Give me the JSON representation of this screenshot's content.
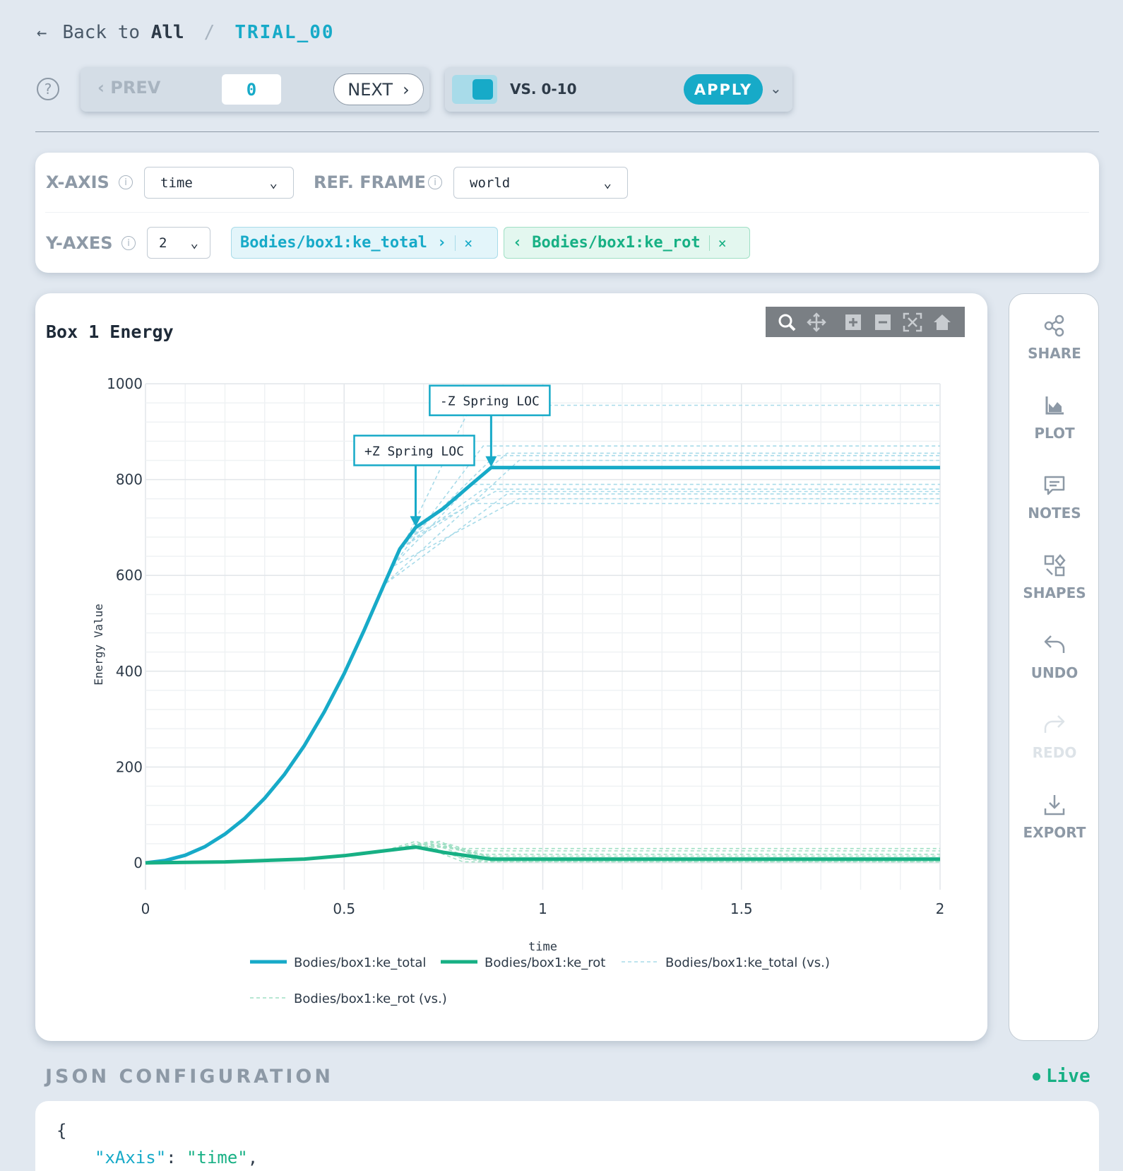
{
  "breadcrumb": {
    "back_prefix": "Back to",
    "back_target": "All",
    "separator": "/",
    "current": "TRIAL_00"
  },
  "nav": {
    "prev_label": "PREV",
    "index_value": "0",
    "next_label": "NEXT"
  },
  "compare": {
    "label": "VS. 0-10",
    "apply_label": "APPLY",
    "toggle_on": true
  },
  "axes": {
    "x_label": "X-AXIS",
    "x_value": "time",
    "ref_label": "REF. FRAME",
    "ref_value": "world",
    "y_label": "Y-AXES",
    "y_count": "2",
    "y_chips": [
      "Bodies/box1:ke_total",
      "Bodies/box1:ke_rot"
    ]
  },
  "plot": {
    "title": "Box 1 Energy"
  },
  "colors": {
    "accent": "#17aac8",
    "green": "#17b084",
    "text": "#1e2a38",
    "muted": "#8d99a6"
  },
  "chart_data": {
    "type": "line",
    "title": "Box 1 Energy",
    "xlabel": "time",
    "ylabel": "Energy Value",
    "xlim": [
      0,
      2
    ],
    "ylim": [
      0,
      1000
    ],
    "x_ticks": [
      "0",
      "0.5",
      "1",
      "1.5",
      "2"
    ],
    "y_ticks": [
      "0",
      "200",
      "400",
      "600",
      "800",
      "1000"
    ],
    "grid": true,
    "legend_position": "bottom",
    "series": [
      {
        "name": "Bodies/box1:ke_total",
        "style": "solid",
        "color": "#17aac8",
        "x": [
          0,
          0.05,
          0.1,
          0.15,
          0.2,
          0.25,
          0.3,
          0.35,
          0.4,
          0.45,
          0.5,
          0.55,
          0.6,
          0.64,
          0.68,
          0.75,
          0.82,
          0.87,
          1.0,
          1.5,
          2.0
        ],
        "y": [
          0,
          5,
          16,
          34,
          60,
          93,
          135,
          185,
          245,
          315,
          395,
          485,
          580,
          655,
          700,
          740,
          790,
          825,
          825,
          825,
          825
        ]
      },
      {
        "name": "Bodies/box1:ke_rot",
        "style": "solid",
        "color": "#17b084",
        "x": [
          0,
          0.2,
          0.4,
          0.5,
          0.6,
          0.68,
          0.75,
          0.87,
          1.0,
          1.5,
          2.0
        ],
        "y": [
          0,
          2,
          8,
          15,
          25,
          33,
          22,
          8,
          8,
          8,
          8
        ]
      },
      {
        "name": "Bodies/box1:ke_total (vs.)",
        "style": "dashed",
        "color": "#a8dbe9"
      },
      {
        "name": "Bodies/box1:ke_rot (vs.)",
        "style": "dashed",
        "color": "#9fdfc4"
      }
    ],
    "vs_total_plateaus": [
      955,
      870,
      850,
      855,
      840,
      790,
      780,
      775,
      770,
      760,
      750
    ],
    "vs_rot_plateaus": [
      30,
      25,
      18,
      14,
      10,
      8,
      6,
      5,
      4,
      3,
      2
    ],
    "annotations": [
      {
        "text": "+Z Spring LOC",
        "x": 0.68,
        "y": 700
      },
      {
        "text": "-Z Spring LOC",
        "x": 0.87,
        "y": 825
      }
    ]
  },
  "side": {
    "items": [
      {
        "label": "SHARE",
        "icon": "share-icon"
      },
      {
        "label": "PLOT",
        "icon": "plot-icon"
      },
      {
        "label": "NOTES",
        "icon": "notes-icon"
      },
      {
        "label": "SHAPES",
        "icon": "shapes-icon"
      },
      {
        "label": "UNDO",
        "icon": "undo-icon"
      },
      {
        "label": "REDO",
        "icon": "redo-icon"
      },
      {
        "label": "EXPORT",
        "icon": "export-icon"
      }
    ]
  },
  "json_config": {
    "heading": "JSON CONFIGURATION",
    "status": "Live",
    "open_brace": "{",
    "line1_key": "\"xAxis\"",
    "line1_colon": ": ",
    "line1_value": "\"time\"",
    "line1_comma": ","
  }
}
